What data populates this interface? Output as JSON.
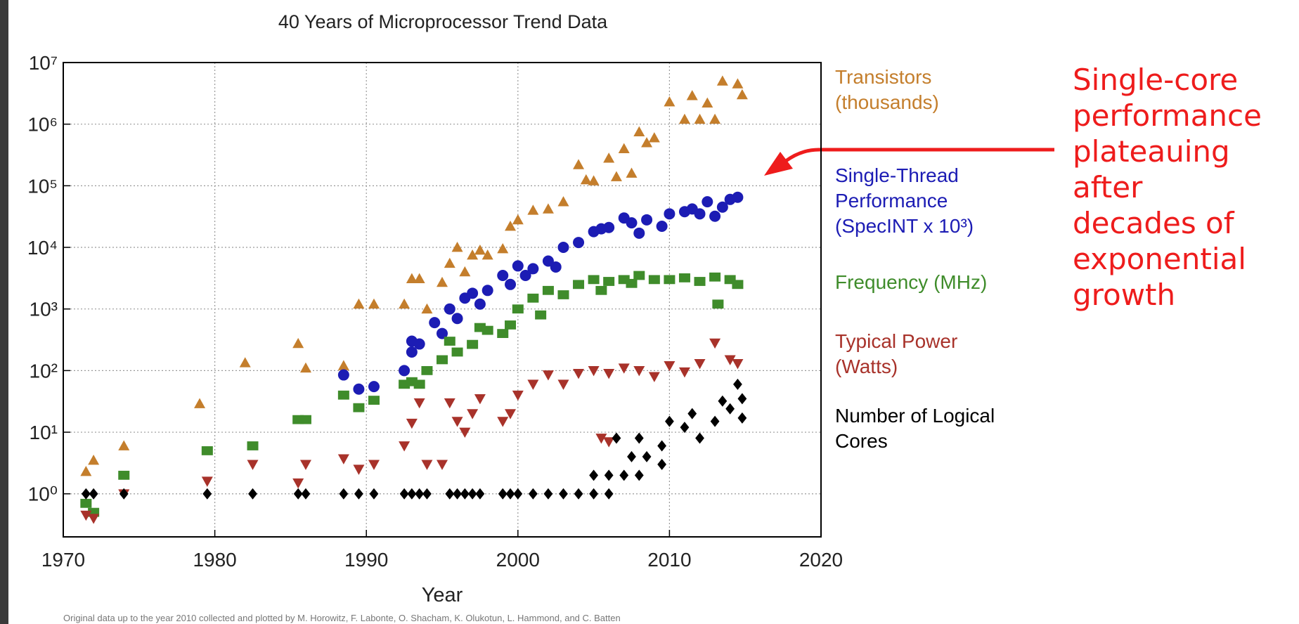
{
  "chart_data": {
    "type": "scatter",
    "title": "40 Years of Microprocessor Trend Data",
    "xlabel": "Year",
    "footnote": "Original data up to the year 2010 collected and plotted by M. Horowitz, F. Labonte, O. Shacham, K. Olukotun, L. Hammond, and C. Batten",
    "annotation_lines": [
      "Single-core",
      "performance",
      "plateauing",
      "after",
      "decades of",
      "exponential",
      "growth"
    ],
    "annotation_color": "#ee1c1c",
    "ylog": true,
    "grid": true,
    "xlim": [
      1970,
      2020
    ],
    "xticks": [
      1970,
      1980,
      1990,
      2000,
      2010,
      2020
    ],
    "ylim": [
      0.2,
      10000000
    ],
    "yticks": [
      {
        "value": 1,
        "label": "10⁰"
      },
      {
        "value": 10,
        "label": "10¹"
      },
      {
        "value": 100,
        "label": "10²"
      },
      {
        "value": 1000,
        "label": "10³"
      },
      {
        "value": 10000,
        "label": "10⁴"
      },
      {
        "value": 100000,
        "label": "10⁵"
      },
      {
        "value": 1000000,
        "label": "10⁶"
      },
      {
        "value": 10000000,
        "label": "10⁷"
      }
    ],
    "series": [
      {
        "name": "Transistors (thousands)",
        "color": "#c47e2c",
        "marker": "triangle-up",
        "x": [
          1971.5,
          1972,
          1974,
          1979,
          1982,
          1985.5,
          1986,
          1988.5,
          1989.5,
          1990.5,
          1992.5,
          1993,
          1993.5,
          1994,
          1995,
          1995.5,
          1996,
          1996.5,
          1997,
          1997.5,
          1998,
          1999,
          1999.5,
          2000,
          2001,
          2002,
          2003,
          2004,
          2004.5,
          2005,
          2006,
          2006.5,
          2007,
          2007.5,
          2008,
          2008.5,
          2009,
          2010,
          2011,
          2011.5,
          2012,
          2012.5,
          2013,
          2013.5,
          2014.5,
          2014.8
        ],
        "values": [
          2.3,
          3.5,
          6,
          29,
          134,
          275,
          110,
          120,
          1200,
          1200,
          1200,
          3100,
          3100,
          1000,
          2700,
          5500,
          10000,
          4000,
          7500,
          9000,
          7500,
          9500,
          22000,
          28000,
          40000,
          42000,
          55000,
          220000,
          125000,
          120000,
          280000,
          140000,
          400000,
          160000,
          750000,
          500000,
          600000,
          2300000,
          1200000,
          2900000,
          1200000,
          2200000,
          1200000,
          5000000,
          4500000,
          3000000
        ]
      },
      {
        "name": "Single-Thread Performance (SpecINT x 10³)",
        "color": "#1c1cb4",
        "marker": "circle",
        "x": [
          1988.5,
          1989.5,
          1990.5,
          1992.5,
          1993,
          1993,
          1993.5,
          1994.5,
          1995,
          1995.5,
          1996,
          1996.5,
          1997,
          1997.5,
          1998,
          1999,
          1999.5,
          2000,
          2000.5,
          2001,
          2002,
          2002.5,
          2003,
          2004,
          2005,
          2005.5,
          2006,
          2007,
          2007.5,
          2008,
          2008.5,
          2009.5,
          2010,
          2011,
          2011.5,
          2012,
          2012.5,
          2013,
          2013.5,
          2014,
          2014.5
        ],
        "values": [
          85,
          50,
          55,
          100,
          200,
          300,
          270,
          600,
          400,
          1000,
          700,
          1500,
          1800,
          1200,
          2000,
          3500,
          2500,
          5000,
          3500,
          4500,
          6000,
          4800,
          10000,
          12000,
          18000,
          20000,
          21000,
          30000,
          25000,
          17000,
          28000,
          22000,
          35000,
          38000,
          42000,
          35000,
          55000,
          32000,
          45000,
          60000,
          65000
        ]
      },
      {
        "name": "Frequency (MHz)",
        "color": "#3f8c2b",
        "marker": "square",
        "x": [
          1971.5,
          1972,
          1974,
          1979.5,
          1982.5,
          1985.5,
          1986,
          1988.5,
          1989.5,
          1990.5,
          1992.5,
          1993,
          1993.5,
          1994,
          1995,
          1995.5,
          1996,
          1997,
          1997.5,
          1998,
          1999,
          1999.5,
          2000,
          2001,
          2001.5,
          2002,
          2003,
          2004,
          2005,
          2005.5,
          2006,
          2007,
          2007.5,
          2008,
          2009,
          2010,
          2011,
          2012,
          2013,
          2013.2,
          2014,
          2014.5
        ],
        "values": [
          0.7,
          0.5,
          2,
          5,
          6,
          16,
          16,
          40,
          25,
          33,
          60,
          66,
          60,
          100,
          150,
          300,
          200,
          266,
          500,
          450,
          400,
          550,
          1000,
          1500,
          800,
          2000,
          1700,
          2500,
          3000,
          2000,
          2800,
          3000,
          2600,
          3500,
          3000,
          3000,
          3200,
          2800,
          3300,
          1200,
          3000,
          2500
        ]
      },
      {
        "name": "Typical Power (Watts)",
        "color": "#a8322a",
        "marker": "triangle-down",
        "x": [
          1971.5,
          1972,
          1974,
          1979.5,
          1982.5,
          1985.5,
          1986,
          1988.5,
          1989.5,
          1990.5,
          1992.5,
          1993,
          1993.5,
          1994,
          1995,
          1995.5,
          1996,
          1996.5,
          1997,
          1997.5,
          1999,
          1999.5,
          2000,
          2001,
          2002,
          2003,
          2004,
          2005,
          2005.5,
          2006,
          2006,
          2007,
          2008,
          2009,
          2010,
          2011,
          2012,
          2013,
          2014,
          2014.5
        ],
        "values": [
          0.45,
          0.4,
          1,
          1.6,
          3,
          1.5,
          3,
          3.7,
          2.5,
          3,
          6,
          14,
          30,
          3,
          3,
          30,
          15,
          10,
          20,
          35,
          15,
          20,
          40,
          60,
          85,
          60,
          90,
          100,
          8,
          7,
          90,
          110,
          100,
          80,
          120,
          95,
          130,
          280,
          150,
          130
        ]
      },
      {
        "name": "Number of Logical Cores",
        "color": "#000000",
        "marker": "diamond",
        "x": [
          1971.5,
          1972,
          1974,
          1979.5,
          1982.5,
          1985.5,
          1986,
          1988.5,
          1989.5,
          1990.5,
          1992.5,
          1993,
          1993.5,
          1994,
          1995.5,
          1996,
          1996.5,
          1997,
          1997.5,
          1999,
          1999.5,
          2000,
          2001,
          2002,
          2003,
          2004,
          2005,
          2005,
          2006,
          2006,
          2006.5,
          2007,
          2007.5,
          2008,
          2008,
          2008.5,
          2009.5,
          2009.5,
          2010,
          2011,
          2011.5,
          2012,
          2013,
          2013.5,
          2014,
          2014.5,
          2014.8,
          2014.8
        ],
        "values": [
          1,
          1,
          1,
          1,
          1,
          1,
          1,
          1,
          1,
          1,
          1,
          1,
          1,
          1,
          1,
          1,
          1,
          1,
          1,
          1,
          1,
          1,
          1,
          1,
          1,
          1,
          2,
          1,
          1,
          2,
          8,
          2,
          4,
          8,
          2,
          4,
          3,
          6,
          15,
          12,
          20,
          8,
          15,
          32,
          24,
          60,
          35,
          17
        ]
      }
    ]
  }
}
